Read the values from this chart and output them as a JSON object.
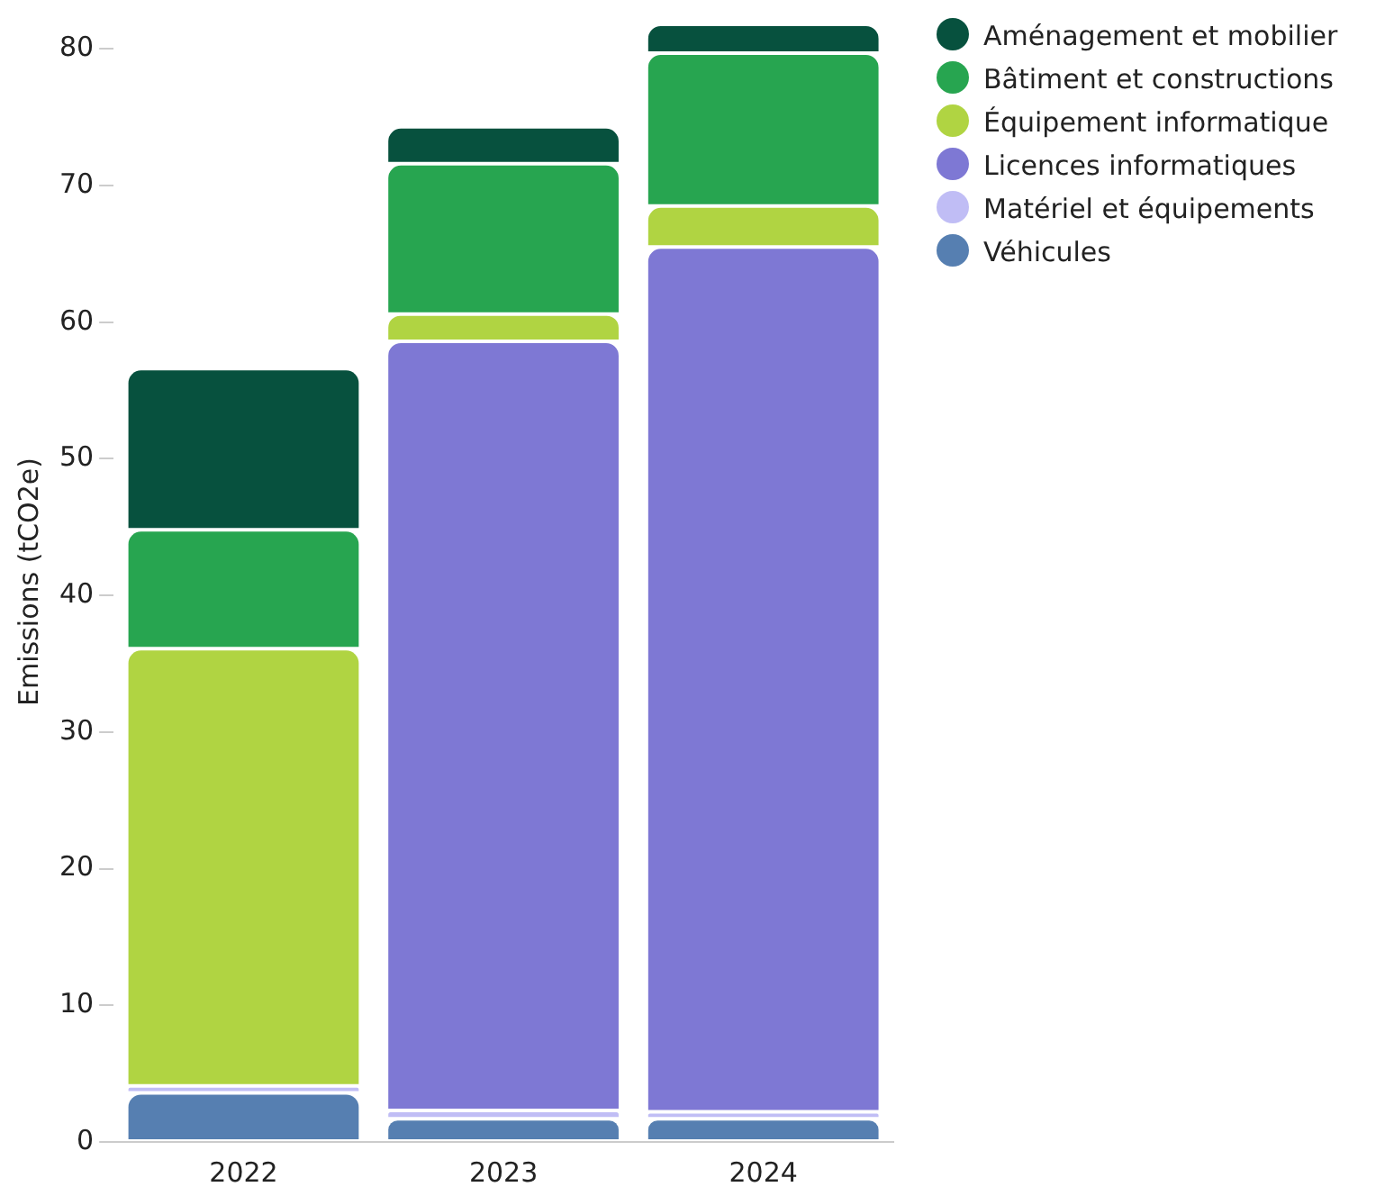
{
  "chart_data": {
    "type": "bar",
    "stacked": true,
    "ylabel": "Emissions (tCO2e)",
    "categories": [
      "2022",
      "2023",
      "2024"
    ],
    "series": [
      {
        "name": "Véhicules",
        "color": "#567fb1",
        "values": [
          3.6,
          1.7,
          1.7
        ]
      },
      {
        "name": "Matériel et équipements",
        "color": "#c0bdf5",
        "values": [
          0.5,
          0.6,
          0.5
        ]
      },
      {
        "name": "Licences informatiques",
        "color": "#7e78d4",
        "values": [
          0,
          56.3,
          63.3
        ]
      },
      {
        "name": "Équipement informatique",
        "color": "#b0d442",
        "values": [
          32.0,
          2.0,
          3.0
        ]
      },
      {
        "name": "Bâtiment et constructions",
        "color": "#27a550",
        "values": [
          8.7,
          11.0,
          11.2
        ]
      },
      {
        "name": "Aménagement et mobilier",
        "color": "#07513e",
        "values": [
          11.8,
          2.7,
          2.1
        ]
      }
    ],
    "ylim": [
      0,
      82
    ],
    "yticks": [
      0,
      10,
      20,
      30,
      40,
      50,
      60,
      70,
      80
    ],
    "grid": false,
    "legend": "top right",
    "marker": "circle"
  }
}
